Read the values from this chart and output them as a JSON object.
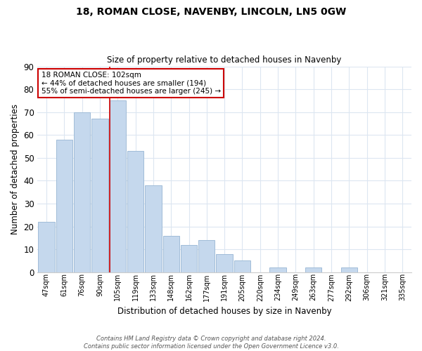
{
  "title": "18, ROMAN CLOSE, NAVENBY, LINCOLN, LN5 0GW",
  "subtitle": "Size of property relative to detached houses in Navenby",
  "xlabel": "Distribution of detached houses by size in Navenby",
  "ylabel": "Number of detached properties",
  "bar_labels": [
    "47sqm",
    "61sqm",
    "76sqm",
    "90sqm",
    "105sqm",
    "119sqm",
    "133sqm",
    "148sqm",
    "162sqm",
    "177sqm",
    "191sqm",
    "205sqm",
    "220sqm",
    "234sqm",
    "249sqm",
    "263sqm",
    "277sqm",
    "292sqm",
    "306sqm",
    "321sqm",
    "335sqm"
  ],
  "bar_values": [
    22,
    58,
    70,
    67,
    75,
    53,
    38,
    16,
    12,
    14,
    8,
    5,
    0,
    2,
    0,
    2,
    0,
    2,
    0,
    0,
    0
  ],
  "bar_color": "#c5d8ed",
  "bar_edge_color": "#a0bcd8",
  "reference_line_color": "#cc0000",
  "ylim": [
    0,
    90
  ],
  "yticks": [
    0,
    10,
    20,
    30,
    40,
    50,
    60,
    70,
    80,
    90
  ],
  "annotation_title": "18 ROMAN CLOSE: 102sqm",
  "annotation_line1": "← 44% of detached houses are smaller (194)",
  "annotation_line2": "55% of semi-detached houses are larger (245) →",
  "annotation_box_color": "#ffffff",
  "annotation_box_edge_color": "#cc0000",
  "footer_line1": "Contains HM Land Registry data © Crown copyright and database right 2024.",
  "footer_line2": "Contains public sector information licensed under the Open Government Licence v3.0.",
  "background_color": "#ffffff",
  "grid_color": "#dce6f1"
}
